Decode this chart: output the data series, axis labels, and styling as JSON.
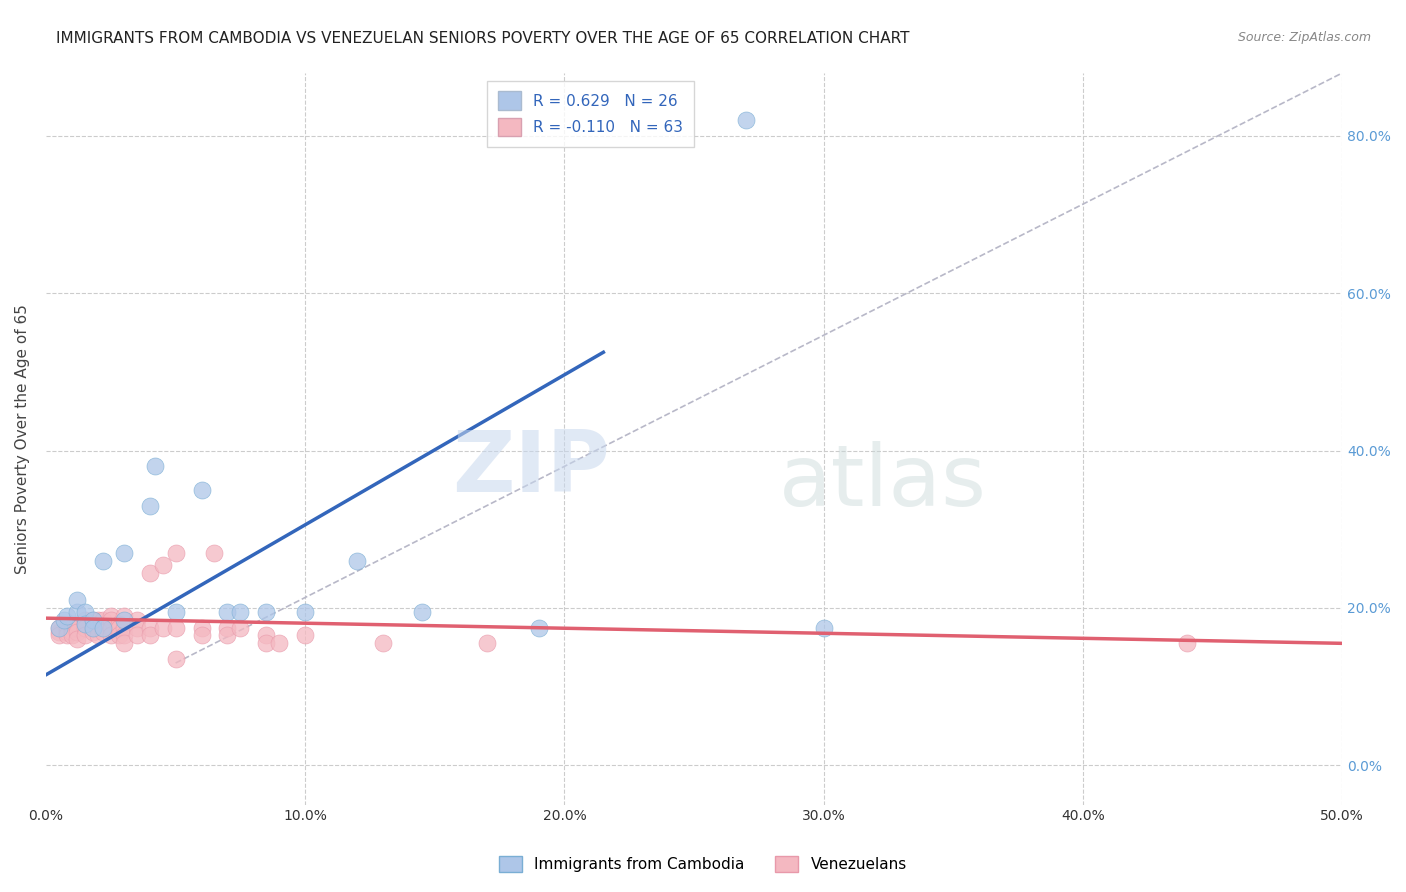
{
  "title": "IMMIGRANTS FROM CAMBODIA VS VENEZUELAN SENIORS POVERTY OVER THE AGE OF 65 CORRELATION CHART",
  "source": "Source: ZipAtlas.com",
  "ylabel": "Seniors Poverty Over the Age of 65",
  "xlabel": "",
  "xlim": [
    0.0,
    0.5
  ],
  "ylim": [
    -0.05,
    0.88
  ],
  "xticks": [
    0.0,
    0.1,
    0.2,
    0.3,
    0.4,
    0.5
  ],
  "xtick_labels": [
    "0.0%",
    "10.0%",
    "20.0%",
    "30.0%",
    "40.0%",
    "50.0%"
  ],
  "ytick_labels_right": [
    "0.0%",
    "20.0%",
    "40.0%",
    "60.0%",
    "80.0%"
  ],
  "ytick_vals_right": [
    0.0,
    0.2,
    0.4,
    0.6,
    0.8
  ],
  "legend_entries": [
    {
      "label": "R = 0.629   N = 26",
      "color": "#aec6e8"
    },
    {
      "label": "R = -0.110   N = 63",
      "color": "#f4b8c1"
    }
  ],
  "watermark_zip": "ZIP",
  "watermark_atlas": "atlas",
  "cambodia_color": "#aec6e8",
  "cambodia_edge_color": "#7aaed4",
  "cambodia_line_color": "#3366bb",
  "venezuela_color": "#f4b8c1",
  "venezuela_edge_color": "#e899aa",
  "venezuela_line_color": "#e06070",
  "cambodia_scatter": [
    [
      0.005,
      0.175
    ],
    [
      0.007,
      0.185
    ],
    [
      0.008,
      0.19
    ],
    [
      0.012,
      0.195
    ],
    [
      0.012,
      0.21
    ],
    [
      0.015,
      0.195
    ],
    [
      0.015,
      0.18
    ],
    [
      0.018,
      0.185
    ],
    [
      0.018,
      0.175
    ],
    [
      0.022,
      0.26
    ],
    [
      0.022,
      0.175
    ],
    [
      0.03,
      0.27
    ],
    [
      0.03,
      0.185
    ],
    [
      0.04,
      0.33
    ],
    [
      0.042,
      0.38
    ],
    [
      0.05,
      0.195
    ],
    [
      0.06,
      0.35
    ],
    [
      0.07,
      0.195
    ],
    [
      0.075,
      0.195
    ],
    [
      0.085,
      0.195
    ],
    [
      0.1,
      0.195
    ],
    [
      0.12,
      0.26
    ],
    [
      0.145,
      0.195
    ],
    [
      0.19,
      0.175
    ],
    [
      0.27,
      0.82
    ],
    [
      0.3,
      0.175
    ]
  ],
  "venezuela_scatter": [
    [
      0.005,
      0.17
    ],
    [
      0.005,
      0.175
    ],
    [
      0.005,
      0.165
    ],
    [
      0.008,
      0.175
    ],
    [
      0.008,
      0.17
    ],
    [
      0.008,
      0.165
    ],
    [
      0.01,
      0.18
    ],
    [
      0.01,
      0.175
    ],
    [
      0.01,
      0.17
    ],
    [
      0.01,
      0.165
    ],
    [
      0.012,
      0.18
    ],
    [
      0.012,
      0.175
    ],
    [
      0.012,
      0.17
    ],
    [
      0.012,
      0.16
    ],
    [
      0.015,
      0.185
    ],
    [
      0.015,
      0.18
    ],
    [
      0.015,
      0.175
    ],
    [
      0.015,
      0.165
    ],
    [
      0.018,
      0.185
    ],
    [
      0.018,
      0.175
    ],
    [
      0.018,
      0.17
    ],
    [
      0.02,
      0.185
    ],
    [
      0.02,
      0.18
    ],
    [
      0.02,
      0.175
    ],
    [
      0.02,
      0.165
    ],
    [
      0.022,
      0.185
    ],
    [
      0.022,
      0.175
    ],
    [
      0.022,
      0.17
    ],
    [
      0.025,
      0.19
    ],
    [
      0.025,
      0.185
    ],
    [
      0.025,
      0.175
    ],
    [
      0.025,
      0.165
    ],
    [
      0.028,
      0.18
    ],
    [
      0.028,
      0.175
    ],
    [
      0.028,
      0.165
    ],
    [
      0.03,
      0.19
    ],
    [
      0.03,
      0.175
    ],
    [
      0.03,
      0.165
    ],
    [
      0.03,
      0.155
    ],
    [
      0.035,
      0.185
    ],
    [
      0.035,
      0.175
    ],
    [
      0.035,
      0.165
    ],
    [
      0.04,
      0.245
    ],
    [
      0.04,
      0.175
    ],
    [
      0.04,
      0.165
    ],
    [
      0.045,
      0.255
    ],
    [
      0.045,
      0.175
    ],
    [
      0.05,
      0.27
    ],
    [
      0.05,
      0.175
    ],
    [
      0.05,
      0.135
    ],
    [
      0.06,
      0.175
    ],
    [
      0.06,
      0.165
    ],
    [
      0.065,
      0.27
    ],
    [
      0.07,
      0.175
    ],
    [
      0.07,
      0.165
    ],
    [
      0.075,
      0.175
    ],
    [
      0.085,
      0.165
    ],
    [
      0.085,
      0.155
    ],
    [
      0.09,
      0.155
    ],
    [
      0.1,
      0.165
    ],
    [
      0.13,
      0.155
    ],
    [
      0.17,
      0.155
    ],
    [
      0.44,
      0.155
    ]
  ],
  "background_color": "#ffffff",
  "grid_color": "#cccccc",
  "title_fontsize": 11,
  "axis_label_fontsize": 11,
  "tick_fontsize": 10
}
